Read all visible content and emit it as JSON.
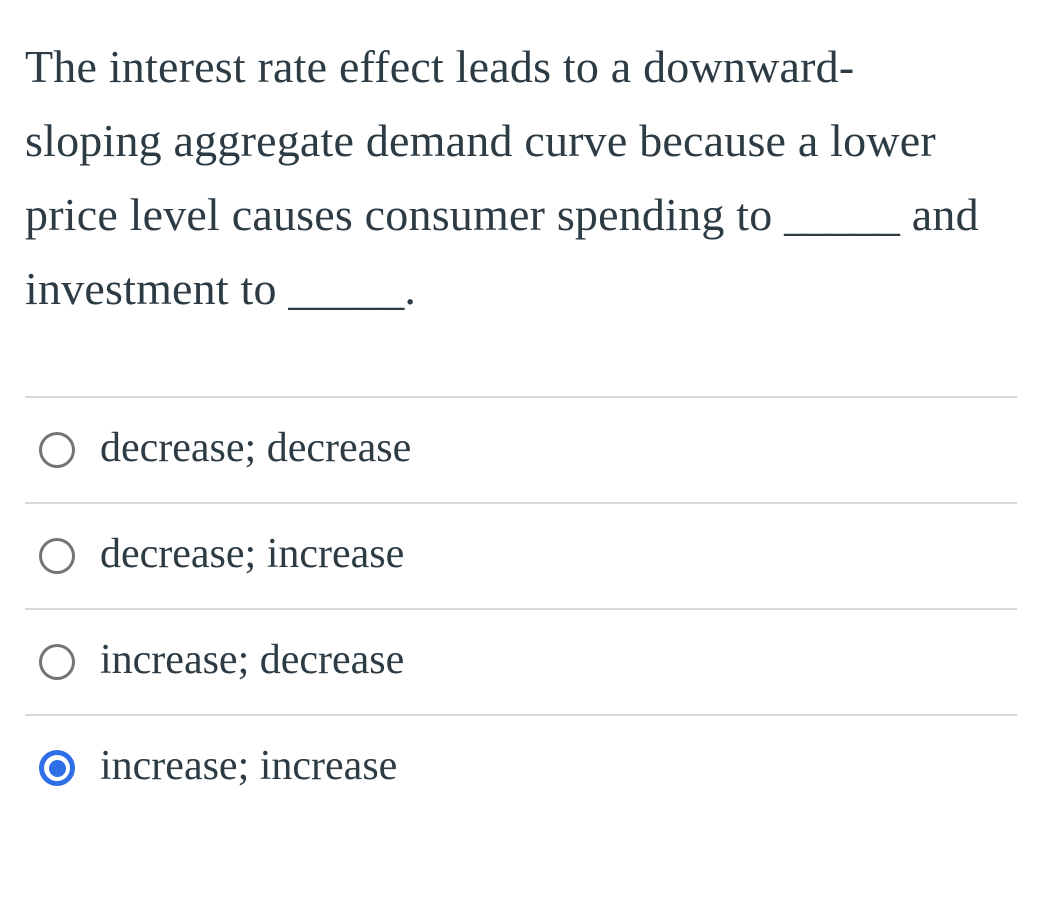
{
  "question": {
    "lines": [
      "The interest rate effect leads to a downward-",
      "sloping aggregate demand curve because a lower",
      "price level causes consumer spending to _____ and",
      "investment to _____."
    ]
  },
  "options": [
    {
      "label": "decrease; decrease",
      "selected": false
    },
    {
      "label": "decrease; increase",
      "selected": false
    },
    {
      "label": "increase; decrease",
      "selected": false
    },
    {
      "label": "increase; increase",
      "selected": true
    }
  ],
  "colors": {
    "background": "#ffffff",
    "text": "#2d3b45",
    "divider": "#d9d9d9",
    "radio_unselected": "#747474",
    "radio_selected": "#2e6fe8"
  }
}
